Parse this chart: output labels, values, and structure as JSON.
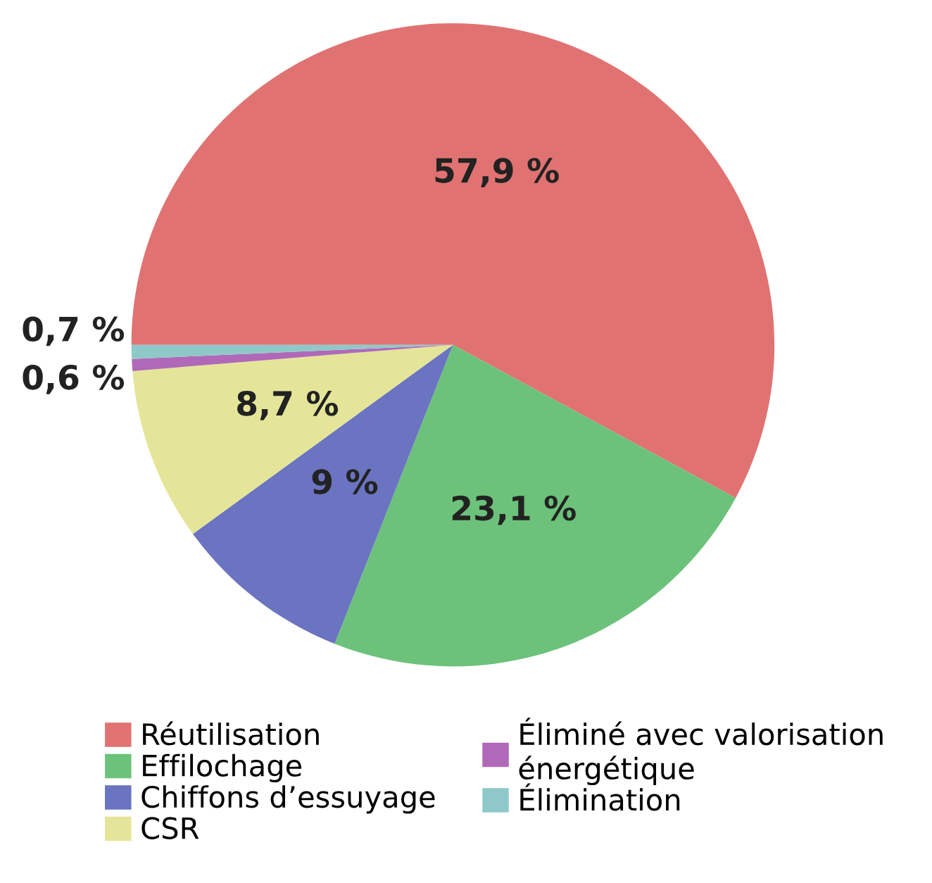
{
  "chart_data": {
    "type": "pie",
    "categories": [
      "Réutilisation",
      "Effilochage",
      "Chiffons d’essuyage",
      "CSR",
      "Éliminé avec valorisation\nénergétique",
      "Élimination"
    ],
    "values": [
      57.9,
      23.1,
      9,
      8.7,
      0.6,
      0.7
    ],
    "colors": [
      "#e07372",
      "#6cc27a",
      "#6a74c0",
      "#e4e598",
      "#b069b8",
      "#8fc8c8"
    ],
    "value_labels": [
      "57,9 %",
      "23,1 %",
      "9 %",
      "8,7 %",
      "0,6 %",
      "0,7 %"
    ],
    "legend": "bottom"
  }
}
